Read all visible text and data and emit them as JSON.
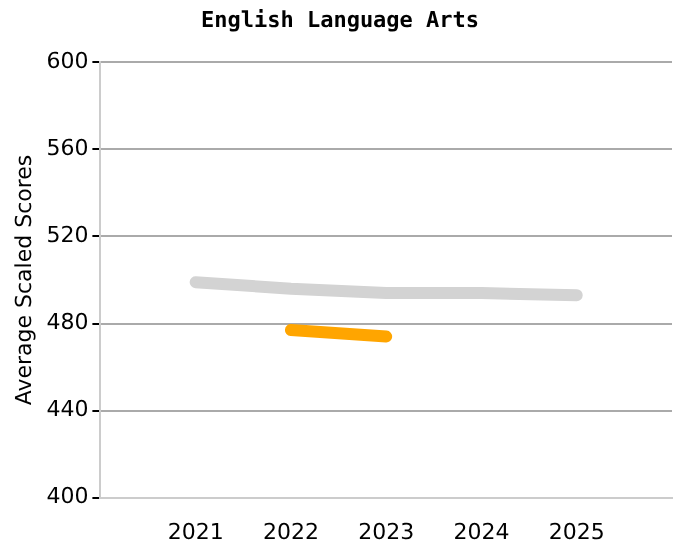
{
  "chart_data": {
    "type": "line",
    "title": "English Language Arts",
    "ylabel": "Average Scaled Scores",
    "x": [
      2021,
      2022,
      2023,
      2024,
      2025
    ],
    "series": [
      {
        "color": "#d3d3d3",
        "values": [
          499,
          496,
          494,
          494,
          493
        ]
      },
      {
        "color": "#ffa500",
        "values": [
          null,
          477,
          474,
          null,
          null
        ]
      }
    ],
    "xlim": [
      2020,
      2026
    ],
    "xticks": [
      2021,
      2022,
      2023,
      2024,
      2025
    ],
    "ylim": [
      400,
      600
    ],
    "yticks": [
      400,
      440,
      480,
      520,
      560,
      600
    ],
    "grid": "y",
    "legend": false,
    "marker": "none",
    "line_style": "solid"
  }
}
